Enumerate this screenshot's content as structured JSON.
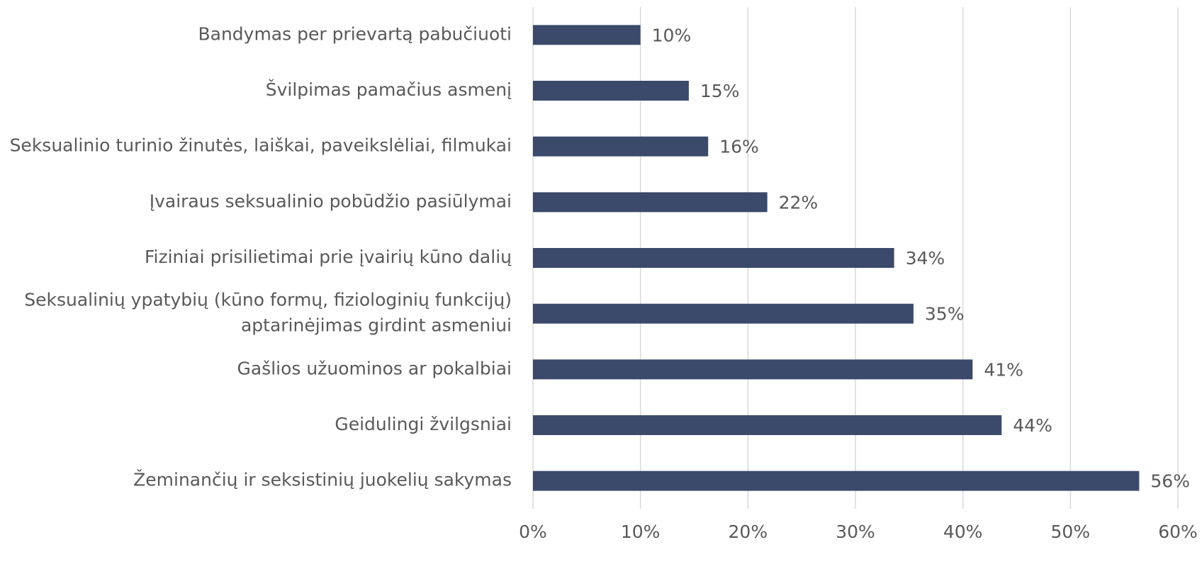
{
  "chart_data": {
    "type": "hbar",
    "categories": [
      "Bandymas per prievartą pabučiuoti",
      "Švilpimas pamačius asmenį",
      "Seksualinio turinio žinutės, laiškai, paveikslėliai, filmukai",
      "Įvairaus seksualinio pobūdžio pasiūlymai",
      "Fiziniai prisilietimai prie įvairių kūno dalių",
      "Seksualinių ypatybių (kūno formų, fiziologinių funkcijų)\naptarinėjimas girdint asmeniui",
      "Gašlios užuominos ar pokalbiai",
      "Geidulingi žvilgsniai",
      "Žeminančių ir seksistinių juokelių sakymas"
    ],
    "values": [
      10,
      14.5,
      16.3,
      21.8,
      33.6,
      35.4,
      40.9,
      43.6,
      56.4
    ],
    "value_labels": [
      "10%",
      "15%",
      "16%",
      "22%",
      "34%",
      "35%",
      "41%",
      "44%",
      "56%"
    ],
    "color": "#3b4a6b",
    "xlim": [
      0,
      60
    ],
    "xticks": [
      {
        "value": 0,
        "label": "0%"
      },
      {
        "value": 10,
        "label": "10%"
      },
      {
        "value": 20,
        "label": "20%"
      },
      {
        "value": 30,
        "label": "30%"
      },
      {
        "value": 40,
        "label": "40%"
      },
      {
        "value": 50,
        "label": "50%"
      },
      {
        "value": 60,
        "label": "60%"
      }
    ],
    "grid": true
  }
}
